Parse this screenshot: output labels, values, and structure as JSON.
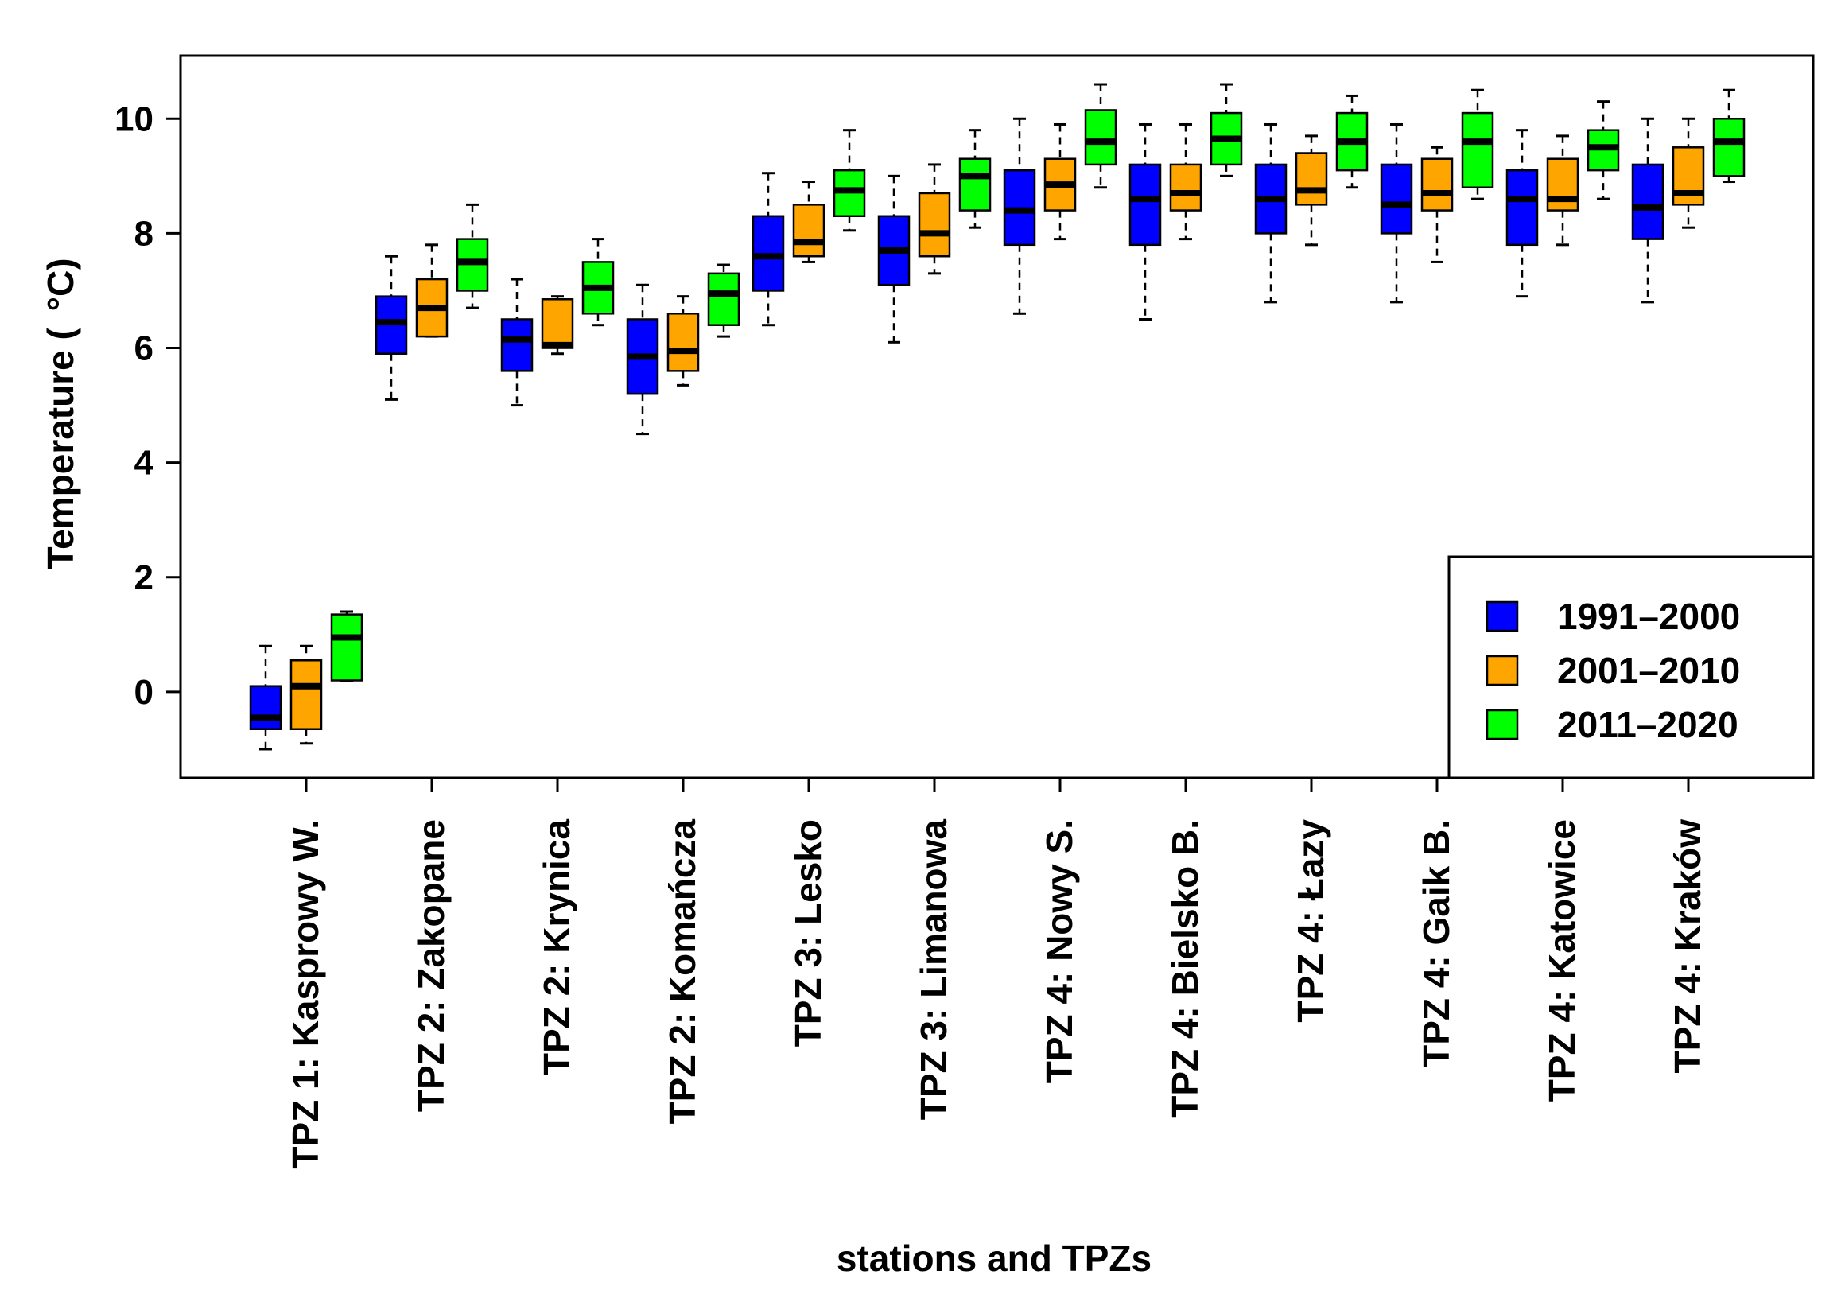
{
  "chart_data": {
    "type": "boxplot",
    "title": "",
    "xlabel": "stations and TPZs",
    "ylabel_main": "Temperature (",
    "ylabel_unit": "°C)",
    "ylim": [
      -1.5,
      11.1
    ],
    "yticks": [
      0,
      2,
      4,
      6,
      8,
      10
    ],
    "legend": {
      "position": "bottom-right",
      "entries": [
        {
          "label": "1991–2000",
          "color": "#0000ff"
        },
        {
          "label": "2001–2010",
          "color": "#ffa500"
        },
        {
          "label": "2011–2020",
          "color": "#00ff00"
        }
      ]
    },
    "categories": [
      "TPZ 1: Kasprowy W.",
      "TPZ 2: Zakopane",
      "TPZ 2: Krynica",
      "TPZ 2: Komańcza",
      "TPZ 3: Lesko",
      "TPZ 3: Limanowa",
      "TPZ 4: Nowy S.",
      "TPZ 4: Bielsko B.",
      "TPZ 4: Łazy",
      "TPZ 4: Gaik B.",
      "TPZ 4: Katowice",
      "TPZ 4: Kraków"
    ],
    "series": [
      {
        "name": "1991–2000",
        "color": "#0000ff",
        "boxes": [
          {
            "min": -1.0,
            "q1": -0.65,
            "median": -0.45,
            "q3": 0.1,
            "max": 0.8
          },
          {
            "min": 5.1,
            "q1": 5.9,
            "median": 6.45,
            "q3": 6.9,
            "max": 7.6
          },
          {
            "min": 5.0,
            "q1": 5.6,
            "median": 6.15,
            "q3": 6.5,
            "max": 7.2
          },
          {
            "min": 4.5,
            "q1": 5.2,
            "median": 5.85,
            "q3": 6.5,
            "max": 7.1
          },
          {
            "min": 6.4,
            "q1": 7.0,
            "median": 7.6,
            "q3": 8.3,
            "max": 9.05
          },
          {
            "min": 6.1,
            "q1": 7.1,
            "median": 7.7,
            "q3": 8.3,
            "max": 9.0
          },
          {
            "min": 6.6,
            "q1": 7.8,
            "median": 8.4,
            "q3": 9.1,
            "max": 10.0
          },
          {
            "min": 6.5,
            "q1": 7.8,
            "median": 8.6,
            "q3": 9.2,
            "max": 9.9
          },
          {
            "min": 6.8,
            "q1": 8.0,
            "median": 8.6,
            "q3": 9.2,
            "max": 9.9
          },
          {
            "min": 6.8,
            "q1": 8.0,
            "median": 8.5,
            "q3": 9.2,
            "max": 9.9
          },
          {
            "min": 6.9,
            "q1": 7.8,
            "median": 8.6,
            "q3": 9.1,
            "max": 9.8
          },
          {
            "min": 6.8,
            "q1": 7.9,
            "median": 8.45,
            "q3": 9.2,
            "max": 10.0
          }
        ]
      },
      {
        "name": "2001–2010",
        "color": "#ffa500",
        "boxes": [
          {
            "min": -0.9,
            "q1": -0.65,
            "median": 0.1,
            "q3": 0.55,
            "max": 0.8
          },
          {
            "min": 6.2,
            "q1": 6.2,
            "median": 6.7,
            "q3": 7.2,
            "max": 7.8
          },
          {
            "min": 5.9,
            "q1": 6.0,
            "median": 6.05,
            "q3": 6.85,
            "max": 6.9
          },
          {
            "min": 5.35,
            "q1": 5.6,
            "median": 5.95,
            "q3": 6.6,
            "max": 6.9
          },
          {
            "min": 7.5,
            "q1": 7.6,
            "median": 7.85,
            "q3": 8.5,
            "max": 8.9
          },
          {
            "min": 7.3,
            "q1": 7.6,
            "median": 8.0,
            "q3": 8.7,
            "max": 9.2
          },
          {
            "min": 7.9,
            "q1": 8.4,
            "median": 8.85,
            "q3": 9.3,
            "max": 9.9
          },
          {
            "min": 7.9,
            "q1": 8.4,
            "median": 8.7,
            "q3": 9.2,
            "max": 9.9
          },
          {
            "min": 7.8,
            "q1": 8.5,
            "median": 8.75,
            "q3": 9.4,
            "max": 9.7
          },
          {
            "min": 7.5,
            "q1": 8.4,
            "median": 8.7,
            "q3": 9.3,
            "max": 9.5
          },
          {
            "min": 7.8,
            "q1": 8.4,
            "median": 8.6,
            "q3": 9.3,
            "max": 9.7
          },
          {
            "min": 8.1,
            "q1": 8.5,
            "median": 8.7,
            "q3": 9.5,
            "max": 10.0
          }
        ]
      },
      {
        "name": "2011–2020",
        "color": "#00ff00",
        "boxes": [
          {
            "min": 0.2,
            "q1": 0.2,
            "median": 0.95,
            "q3": 1.35,
            "max": 1.4
          },
          {
            "min": 6.7,
            "q1": 7.0,
            "median": 7.5,
            "q3": 7.9,
            "max": 8.5
          },
          {
            "min": 6.4,
            "q1": 6.6,
            "median": 7.05,
            "q3": 7.5,
            "max": 7.9
          },
          {
            "min": 6.2,
            "q1": 6.4,
            "median": 6.95,
            "q3": 7.3,
            "max": 7.45
          },
          {
            "min": 8.05,
            "q1": 8.3,
            "median": 8.75,
            "q3": 9.1,
            "max": 9.8
          },
          {
            "min": 8.1,
            "q1": 8.4,
            "median": 9.0,
            "q3": 9.3,
            "max": 9.8
          },
          {
            "min": 8.8,
            "q1": 9.2,
            "median": 9.6,
            "q3": 10.15,
            "max": 10.6
          },
          {
            "min": 9.0,
            "q1": 9.2,
            "median": 9.65,
            "q3": 10.1,
            "max": 10.6
          },
          {
            "min": 8.8,
            "q1": 9.1,
            "median": 9.6,
            "q3": 10.1,
            "max": 10.4
          },
          {
            "min": 8.6,
            "q1": 8.8,
            "median": 9.6,
            "q3": 10.1,
            "max": 10.5
          },
          {
            "min": 8.6,
            "q1": 9.1,
            "median": 9.5,
            "q3": 9.8,
            "max": 10.3
          },
          {
            "min": 8.9,
            "q1": 9.0,
            "median": 9.6,
            "q3": 10.0,
            "max": 10.5
          }
        ]
      }
    ]
  }
}
